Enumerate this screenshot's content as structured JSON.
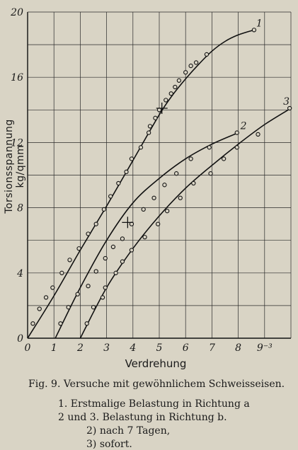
{
  "caption": {
    "figure": "Fig. 9.  Versuche mit gewöhnlichem Schweisseisen.",
    "line1": "1. Erstmalige Belastung in Richtung a",
    "line2": "2 und 3. Belastung in Richtung b.",
    "line3": "2) nach 7 Tagen,",
    "line4": "3) sofort."
  },
  "chart_data": {
    "type": "scatter",
    "title": "",
    "xlabel": "Verdrehung",
    "ylabel": "Torsionsspannung kg/qmm",
    "x_ticks": [
      0,
      1,
      2,
      3,
      4,
      5,
      6,
      7,
      8,
      9
    ],
    "x_tick_labels": [
      "0",
      "1",
      "2",
      "3",
      "4",
      "5",
      "6",
      "7",
      "8",
      "9⁻³"
    ],
    "y_ticks": [
      0,
      4,
      8,
      12,
      16,
      20
    ],
    "y_tick_labels": [
      "0",
      "4",
      "8",
      "12",
      "16",
      "20"
    ],
    "xlim": [
      0,
      10
    ],
    "ylim": [
      0,
      20
    ],
    "grid": true,
    "series": [
      {
        "name": "1",
        "line": [
          [
            0,
            0
          ],
          [
            1,
            2.6
          ],
          [
            2,
            5.4
          ],
          [
            3,
            8.1
          ],
          [
            4,
            10.9
          ],
          [
            5,
            13.7
          ],
          [
            5.5,
            14.9
          ],
          [
            6,
            15.9
          ],
          [
            6.5,
            16.8
          ],
          [
            7,
            17.6
          ],
          [
            7.5,
            18.2
          ],
          [
            8,
            18.6
          ],
          [
            8.6,
            18.9
          ]
        ],
        "points": [
          [
            0.2,
            0.9
          ],
          [
            0.45,
            1.8
          ],
          [
            0.7,
            2.5
          ],
          [
            0.95,
            3.1
          ],
          [
            1.3,
            4.0
          ],
          [
            1.6,
            4.8
          ],
          [
            1.95,
            5.5
          ],
          [
            2.3,
            6.4
          ],
          [
            2.6,
            7.0
          ],
          [
            2.9,
            7.9
          ],
          [
            3.15,
            8.7
          ],
          [
            3.45,
            9.5
          ],
          [
            3.75,
            10.2
          ],
          [
            3.95,
            11.0
          ],
          [
            4.3,
            11.7
          ],
          [
            4.6,
            12.6
          ],
          [
            4.65,
            13.0
          ],
          [
            4.85,
            13.5
          ],
          [
            5.0,
            14.0
          ],
          [
            5.25,
            14.6
          ],
          [
            5.45,
            15.0
          ],
          [
            5.6,
            15.4
          ],
          [
            5.75,
            15.8
          ],
          [
            6.0,
            16.3
          ],
          [
            6.2,
            16.7
          ],
          [
            6.4,
            16.9
          ],
          [
            6.8,
            17.4
          ],
          [
            8.6,
            18.9
          ]
        ],
        "marker": [
          5.1,
          14.1
        ]
      },
      {
        "name": "2",
        "line": [
          [
            1.05,
            0
          ],
          [
            2,
            3.1
          ],
          [
            3,
            6.0
          ],
          [
            4,
            8.3
          ],
          [
            5,
            9.8
          ],
          [
            6,
            11.0
          ],
          [
            7,
            11.9
          ],
          [
            8,
            12.6
          ]
        ],
        "points": [
          [
            1.25,
            0.9
          ],
          [
            1.55,
            1.9
          ],
          [
            1.9,
            2.7
          ],
          [
            2.3,
            3.2
          ],
          [
            2.6,
            4.1
          ],
          [
            2.95,
            4.9
          ],
          [
            3.25,
            5.6
          ],
          [
            3.6,
            6.1
          ],
          [
            3.95,
            7.0
          ],
          [
            4.4,
            7.9
          ],
          [
            4.8,
            8.6
          ],
          [
            5.2,
            9.4
          ],
          [
            5.65,
            10.1
          ],
          [
            6.2,
            11.0
          ],
          [
            6.9,
            11.7
          ],
          [
            7.95,
            12.6
          ]
        ],
        "marker": [
          3.8,
          7.1
        ]
      },
      {
        "name": "3",
        "line": [
          [
            2.0,
            0
          ],
          [
            3,
            3.1
          ],
          [
            4,
            5.5
          ],
          [
            5,
            7.5
          ],
          [
            6,
            9.2
          ],
          [
            7,
            10.6
          ],
          [
            8,
            11.9
          ],
          [
            9,
            13.1
          ],
          [
            10,
            14.1
          ]
        ],
        "points": [
          [
            2.25,
            0.9
          ],
          [
            2.5,
            1.9
          ],
          [
            2.85,
            2.5
          ],
          [
            2.95,
            3.1
          ],
          [
            3.35,
            4.0
          ],
          [
            3.6,
            4.7
          ],
          [
            3.95,
            5.4
          ],
          [
            4.45,
            6.2
          ],
          [
            4.95,
            7.0
          ],
          [
            5.3,
            7.8
          ],
          [
            5.8,
            8.6
          ],
          [
            6.3,
            9.5
          ],
          [
            6.95,
            10.1
          ],
          [
            7.45,
            11.0
          ],
          [
            7.95,
            11.7
          ],
          [
            8.75,
            12.5
          ],
          [
            9.95,
            14.1
          ]
        ]
      }
    ]
  }
}
